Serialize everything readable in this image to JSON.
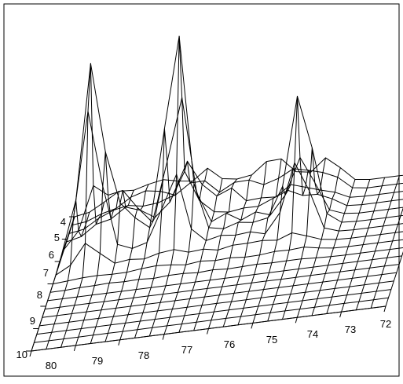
{
  "chart_data": {
    "type": "surface",
    "title": "",
    "xlabel": "",
    "ylabel": "",
    "zlabel": "",
    "x_ticks": [
      "80",
      "79",
      "78",
      "77",
      "76",
      "75",
      "74",
      "73",
      "72"
    ],
    "y_ticks": [
      "4",
      "5",
      "6",
      "7",
      "8",
      "9",
      "10"
    ],
    "x_range": [
      80,
      72
    ],
    "y_range": [
      4,
      10
    ],
    "grid": true,
    "peaks": [
      {
        "x": 79.3,
        "y": 6.0,
        "height": 1.0
      },
      {
        "x": 77.4,
        "y": 5.8,
        "height": 1.0
      },
      {
        "x": 74.6,
        "y": 5.9,
        "height": 0.62
      },
      {
        "x": 77.3,
        "y": 4.8,
        "height": 0.2
      },
      {
        "x": 78.6,
        "y": 5.6,
        "height": 0.22
      }
    ]
  }
}
